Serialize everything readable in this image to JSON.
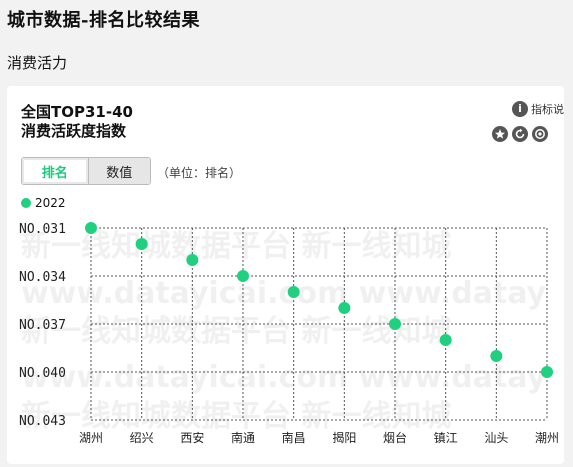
{
  "page": {
    "title": "城市数据-排名比较结果",
    "section": "消费活力"
  },
  "card": {
    "title_line1": "全国TOP31-40",
    "title_line2": "消费活跃度指数",
    "info_label": "指标说",
    "tabs": [
      "排名",
      "数值"
    ],
    "active_tab": 0,
    "unit_note": "（单位：排名）",
    "accent_color": "#1fd07f",
    "icons": [
      "info-icon",
      "star-icon",
      "refresh-icon",
      "target-icon"
    ]
  },
  "watermark": {
    "line_cn": "新一线知城数据平台 新一线知城",
    "line_en": "www.datayicai.com www.datay"
  },
  "chart_data": {
    "type": "scatter",
    "series": [
      {
        "name": "2022",
        "values": [
          31,
          32,
          33,
          34,
          35,
          36,
          37,
          38,
          39,
          40
        ]
      }
    ],
    "categories": [
      "湖州",
      "绍兴",
      "西安",
      "南通",
      "南昌",
      "揭阳",
      "烟台",
      "镇江",
      "汕头",
      "潮州"
    ],
    "y_ticks": [
      "NO.031",
      "NO.034",
      "NO.037",
      "NO.040",
      "NO.043"
    ],
    "y_tick_values": [
      31,
      34,
      37,
      40,
      43
    ],
    "ylim": [
      31,
      43
    ],
    "y_inverted": true,
    "grid": true,
    "legend_position": "top-left"
  }
}
